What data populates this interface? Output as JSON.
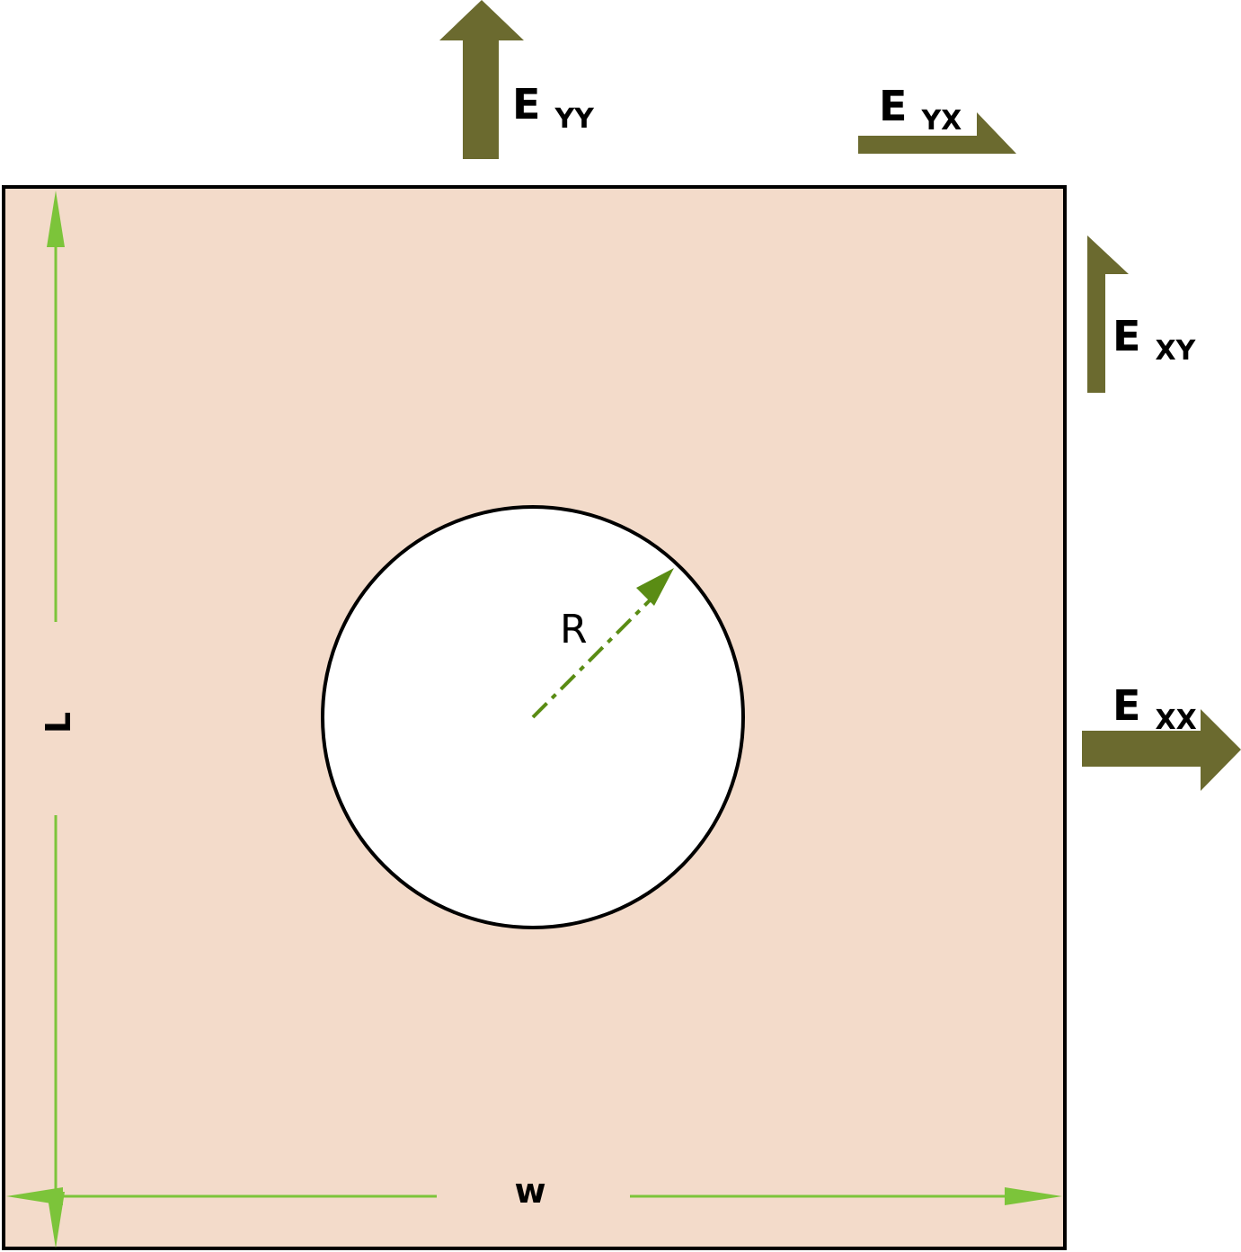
{
  "labels": {
    "strain_yy": {
      "main": "E",
      "sub": "YY"
    },
    "strain_yx": {
      "main": "E",
      "sub": "YX"
    },
    "strain_xy": {
      "main": "E",
      "sub": "XY"
    },
    "strain_xx": {
      "main": "E",
      "sub": "XX"
    },
    "length": "L",
    "width": "w",
    "radius": "R"
  },
  "colors": {
    "plate_fill": "#f3dbca",
    "outline": "#000000",
    "hole_fill": "#ffffff",
    "load_arrow": "#6b6a2f",
    "dimension_arrow": "#7cc43a",
    "radius_arrow": "#5a8c14"
  }
}
